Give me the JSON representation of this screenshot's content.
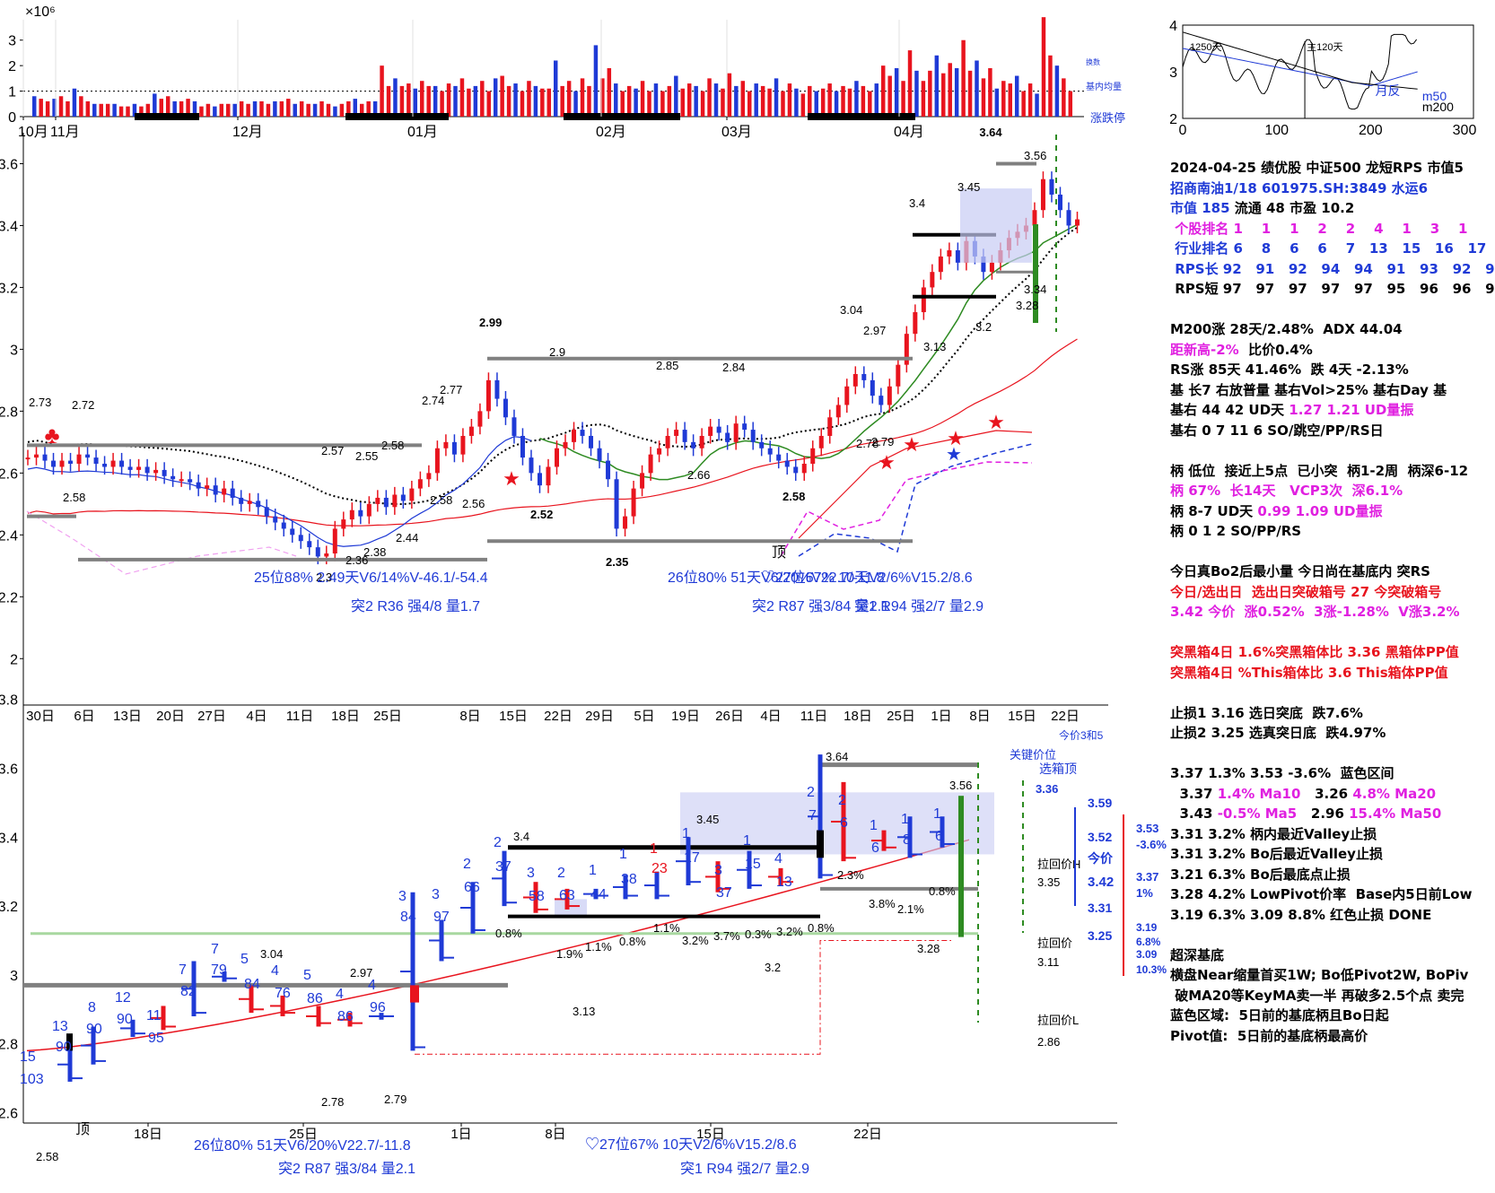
{
  "colors": {
    "up": "#e8141e",
    "down": "#1f3ad6",
    "black": "#000000",
    "grey": "#808080",
    "green": "#2e8b22",
    "lightgreen": "#90d890",
    "magenta": "#e020e0",
    "blueBox": "#c8ccf4"
  },
  "chart_data": [
    {
      "type": "bar",
      "name": "volume",
      "y_unit_label": "×10⁶",
      "yticks": [
        0,
        1,
        2,
        3
      ],
      "ylim": [
        0,
        3.8
      ],
      "xticks": [
        "10月",
        "11月",
        "12月",
        "01月",
        "02月",
        "03月",
        "04月"
      ],
      "side_labels": [
        "换数",
        "基内均量",
        "涨跌停"
      ],
      "values": [
        0.8,
        0.7,
        0.6,
        0.7,
        0.8,
        0.6,
        1.1,
        0.8,
        0.6,
        0.5,
        0.5,
        0.5,
        0.5,
        0.4,
        0.4,
        0.5,
        0.4,
        0.5,
        0.9,
        0.7,
        0.8,
        0.6,
        0.6,
        0.7,
        0.6,
        0.4,
        0.5,
        0.4,
        0.5,
        0.5,
        0.5,
        0.6,
        0.5,
        0.6,
        0.6,
        0.5,
        0.6,
        0.6,
        0.7,
        0.5,
        0.6,
        0.5,
        0.5,
        0.6,
        0.5,
        0.4,
        0.5,
        0.6,
        0.7,
        0.5,
        0.6,
        0.6,
        2.0,
        1.2,
        1.5,
        1.2,
        1.3,
        1.1,
        1.4,
        1.2,
        1.2,
        1.0,
        1.3,
        1.2,
        1.5,
        1.1,
        1.2,
        1.4,
        1.0,
        1.5,
        1.6,
        1.2,
        1.3,
        1.0,
        1.4,
        1.2,
        1.1,
        1.1,
        2.2,
        1.2,
        1.4,
        1.0,
        1.5,
        1.2,
        2.8,
        1.5,
        1.9,
        1.3,
        1.0,
        1.2,
        1.1,
        1.4,
        1.0,
        1.3,
        1.0,
        1.2,
        1.6,
        1.1,
        1.3,
        1.2,
        1.0,
        1.5,
        1.3,
        1.1,
        1.7,
        1.2,
        1.4,
        1.0,
        1.3,
        1.2,
        1.1,
        1.5,
        1.0,
        1.3,
        1.1,
        0.9,
        1.2,
        1.0,
        1.1,
        1.3,
        1.0,
        1.2,
        1.1,
        1.4,
        1.2,
        1.0,
        1.3,
        2.0,
        1.6,
        1.9,
        1.4,
        2.6,
        1.8,
        1.4,
        1.8,
        2.4,
        1.7,
        2.1,
        1.9,
        3.0,
        1.8,
        2.2,
        1.5,
        1.9,
        1.1,
        1.4,
        1.3,
        1.6,
        1.0,
        1.3,
        0.9,
        3.9,
        2.4,
        2.0,
        1.5,
        1.0
      ]
    },
    {
      "type": "line",
      "name": "rps_mini",
      "xticks": [
        0,
        100,
        200,
        300
      ],
      "yticks": [
        2,
        3,
        4
      ],
      "labels": [
        "1250天",
        "主120天",
        "月反",
        "m50",
        "m200"
      ]
    },
    {
      "type": "candlestick",
      "name": "main_daily",
      "ylim": [
        1.85,
        3.7
      ],
      "yticks": [
        2,
        2.2,
        2.4,
        2.6,
        2.8,
        3,
        3.2,
        3.4,
        3.6
      ],
      "xticks": [
        "30日",
        "6日",
        "13日",
        "20日",
        "27日",
        "4日",
        "11日",
        "18日",
        "25日",
        "8日",
        "15日",
        "22日",
        "29日",
        "5日",
        "19日",
        "26日",
        "4日",
        "11日",
        "18日",
        "25日",
        "1日",
        "8日",
        "15日",
        "22日"
      ],
      "top_label": "3.64",
      "value_labels": [
        "2.73",
        "2.72",
        "2.58",
        "2.57",
        "2.55",
        "2.58",
        "2.74",
        "2.77",
        "2.99",
        "2.9",
        "2.85",
        "2.84",
        "3.04",
        "2.97",
        "3.13",
        "3.4",
        "3.45",
        "3.56",
        "3.34",
        "3.28",
        "3.2",
        "2.79",
        "2.78",
        "2.66",
        "2.58",
        "2.52",
        "2.35",
        "2.44",
        "2.38",
        "2.36",
        "2.3",
        "2.58",
        "2.56"
      ],
      "closes": [
        2.65,
        2.66,
        2.64,
        2.62,
        2.64,
        2.63,
        2.66,
        2.65,
        2.63,
        2.62,
        2.64,
        2.62,
        2.61,
        2.62,
        2.6,
        2.61,
        2.59,
        2.58,
        2.58,
        2.57,
        2.55,
        2.56,
        2.53,
        2.55,
        2.52,
        2.5,
        2.51,
        2.49,
        2.46,
        2.44,
        2.42,
        2.4,
        2.38,
        2.36,
        2.33,
        2.34,
        2.42,
        2.45,
        2.48,
        2.46,
        2.5,
        2.52,
        2.49,
        2.53,
        2.51,
        2.55,
        2.58,
        2.6,
        2.68,
        2.7,
        2.66,
        2.72,
        2.75,
        2.8,
        2.9,
        2.84,
        2.78,
        2.72,
        2.65,
        2.6,
        2.56,
        2.62,
        2.68,
        2.7,
        2.74,
        2.72,
        2.68,
        2.64,
        2.58,
        2.42,
        2.46,
        2.55,
        2.6,
        2.66,
        2.68,
        2.72,
        2.74,
        2.7,
        2.68,
        2.72,
        2.75,
        2.73,
        2.7,
        2.76,
        2.74,
        2.7,
        2.68,
        2.66,
        2.64,
        2.62,
        2.6,
        2.63,
        2.68,
        2.72,
        2.78,
        2.82,
        2.88,
        2.92,
        2.9,
        2.85,
        2.82,
        2.88,
        2.95,
        3.05,
        3.12,
        3.2,
        3.25,
        3.3,
        3.32,
        3.28,
        3.35,
        3.3,
        3.25,
        3.28,
        3.32,
        3.36,
        3.38,
        3.4,
        3.45,
        3.55,
        3.5,
        3.45,
        3.4,
        3.42
      ],
      "annotations": [
        "25位88% 2.49天V6/14%V-46.1/-54.4",
        "突2 R36 强4/8 量1.7",
        "26位80% 51天V6/20%V22.7/-11.8",
        "♡27位67% 10天V2/6%V15.2/8.6",
        "突2 R87 强3/84 量2.1",
        "突1 R94 强2/7 量2.9",
        "顶"
      ]
    },
    {
      "type": "candlestick",
      "name": "zoom_daily",
      "ylim": [
        2.57,
        3.82
      ],
      "yticks": [
        2.6,
        2.8,
        3,
        3.2,
        3.4,
        3.6,
        3.8
      ],
      "xticks": [
        "18日",
        "25日",
        "1日",
        "8日",
        "15日",
        "22日"
      ],
      "value_labels": [
        "3.64",
        "3.56",
        "3.45",
        "3.4",
        "3.04",
        "2.97",
        "3.13",
        "3.28",
        "3.2",
        "2.78",
        "2.79",
        "2.58"
      ],
      "rank_labels": [
        "15",
        "103",
        "13",
        "90",
        "8",
        "90",
        "12",
        "90",
        "11",
        "95",
        "7",
        "82",
        "7",
        "79",
        "5",
        "84",
        "4",
        "76",
        "5",
        "86",
        "4",
        "86",
        "4",
        "96",
        "3",
        "84",
        "3",
        "97",
        "2",
        "66",
        "2",
        "37",
        "3",
        "58",
        "2",
        "63",
        "1",
        "44",
        "1",
        "38",
        "1",
        "23",
        "1",
        "17",
        "3",
        "37",
        "1",
        "15",
        "4",
        "13",
        "2",
        "7",
        "2",
        "6",
        "1",
        "6",
        "1",
        "8",
        "1",
        "6"
      ],
      "pct_labels": [
        "0.8%",
        "1.9%",
        "1.1%",
        "0.8%",
        "1.1%",
        "3.2%",
        "3.7%",
        "0.3%",
        "3.2%",
        "0.8%",
        "2.3%",
        "3.8%",
        "2.1%",
        "0.8%"
      ],
      "annotations": [
        "26位80% 51天V6/20%V22.7/-11.8",
        "♡27位67% 10天V2/6%V15.2/8.6",
        "突2 R87 强3/84 量2.1",
        "突1 R94 强2/7 量2.9",
        "顶"
      ],
      "right_panel": [
        "今价3和5",
        "关键价位",
        "选箱顶",
        "3.36",
        "3.59",
        "3.52",
        "拉回价H",
        "3.35",
        "今价",
        "3.42",
        "3.31",
        "3.25",
        "拉回价",
        "3.11",
        "拉回价L",
        "2.86",
        "3.53",
        "-3.6%",
        "3.37",
        "1%",
        "3.19",
        "6.8%",
        "3.09",
        "10.3%"
      ]
    }
  ],
  "side_panel": [
    [
      {
        "c": "k",
        "t": "2024-04-25 绩优股 中证500 龙短RPS 市值5"
      }
    ],
    [
      {
        "c": "b",
        "t": "招商南油1/18 601975.SH:3849 水运6"
      }
    ],
    [
      {
        "c": "b",
        "t": "市值 185 "
      },
      {
        "c": "k",
        "t": "流通 48 市盈 10.2"
      }
    ],
    [
      {
        "c": "m",
        "t": " 个股排名 1    1    1    2    2    4    1    3    1"
      }
    ],
    [
      {
        "c": "b",
        "t": " 行业排名 6    8    6    6    7   13   15   16   17"
      }
    ],
    [
      {
        "c": "b",
        "t": " RPS长 92   91   92   94   94   91   93   92   9"
      }
    ],
    [
      {
        "c": "k",
        "t": " RPS短 97   97   97   97   97   95   96   96   9"
      }
    ],
    [
      {
        "c": "k",
        "t": ""
      }
    ],
    [
      {
        "c": "k",
        "t": "M200涨 28天/2.48%  ADX 44.04"
      }
    ],
    [
      {
        "c": "m",
        "t": "距新高-2%  "
      },
      {
        "c": "k",
        "t": "比价0.4%"
      }
    ],
    [
      {
        "c": "k",
        "t": "RS涨 85天 41.46%  跌 4天 -2.13%"
      }
    ],
    [
      {
        "c": "k",
        "t": "基 长7 右放普量 基右Vol>25% 基右Day 基"
      }
    ],
    [
      {
        "c": "k",
        "t": "基右 44 42 UD天 "
      },
      {
        "c": "m",
        "t": "1.27 1.21 UD量振"
      }
    ],
    [
      {
        "c": "k",
        "t": "基右 0 7 11 6 SO/跳空/PP/RS日"
      }
    ],
    [
      {
        "c": "k",
        "t": ""
      }
    ],
    [
      {
        "c": "k",
        "t": "柄 低位  接近上5点  已小突  柄1-2周  柄深6-12"
      }
    ],
    [
      {
        "c": "m",
        "t": "柄 67%  长14天   VCP3次  深6.1%"
      }
    ],
    [
      {
        "c": "k",
        "t": "柄 8-7 UD天 "
      },
      {
        "c": "m",
        "t": "0.99 1.09 UD量振"
      }
    ],
    [
      {
        "c": "k",
        "t": "柄 0 1 2 SO/PP/RS"
      }
    ],
    [
      {
        "c": "k",
        "t": ""
      }
    ],
    [
      {
        "c": "k",
        "t": "今日真Bo2后最小量 今日尚在基底内 突RS"
      }
    ],
    [
      {
        "c": "r",
        "t": "今日/选出日  选出日突破箱号 27 今突破箱号"
      }
    ],
    [
      {
        "c": "m",
        "t": "3.42 今价  涨0.52%  3涨-1.28%  V涨3.2%"
      }
    ],
    [
      {
        "c": "k",
        "t": ""
      }
    ],
    [
      {
        "c": "r",
        "t": "突黑箱4日 1.6%突黑箱体比 3.36 黑箱体PP值"
      }
    ],
    [
      {
        "c": "r",
        "t": "突黑箱4日 %This箱体比 3.6 This箱体PP值"
      }
    ],
    [
      {
        "c": "k",
        "t": ""
      }
    ],
    [
      {
        "c": "k",
        "t": "止损1 3.16 选日突底  跌7.6%"
      }
    ],
    [
      {
        "c": "k",
        "t": "止损2 3.25 选真突日底  跌4.97%"
      }
    ],
    [
      {
        "c": "k",
        "t": ""
      }
    ],
    [
      {
        "c": "k",
        "t": "3.37 1.3% 3.53 -3.6%  蓝色区间"
      }
    ],
    [
      {
        "c": "k",
        "t": "  3.37 "
      },
      {
        "c": "m",
        "t": "1.4% Ma10   "
      },
      {
        "c": "k",
        "t": "3.26 "
      },
      {
        "c": "m",
        "t": "4.8% Ma20"
      }
    ],
    [
      {
        "c": "k",
        "t": "  3.43 "
      },
      {
        "c": "m",
        "t": "-0.5% Ma5   "
      },
      {
        "c": "k",
        "t": "2.96 "
      },
      {
        "c": "m",
        "t": "15.4% Ma50"
      }
    ],
    [
      {
        "c": "k",
        "t": "3.31 3.2% 柄内最近Valley止损"
      }
    ],
    [
      {
        "c": "k",
        "t": "3.31 3.2% Bo后最近Valley止损"
      }
    ],
    [
      {
        "c": "k",
        "t": "3.21 6.3% Bo后最底点止损"
      }
    ],
    [
      {
        "c": "k",
        "t": "3.28 4.2% LowPivot价率  Base内5日前Low"
      }
    ],
    [
      {
        "c": "k",
        "t": "3.19 6.3% 3.09 8.8% 红色止损 DONE"
      }
    ],
    [
      {
        "c": "k",
        "t": ""
      }
    ],
    [
      {
        "c": "k",
        "t": "超深基底"
      }
    ],
    [
      {
        "c": "k",
        "t": "横盘Near缩量首买1W; Bo低Pivot2W, BoPiv"
      }
    ],
    [
      {
        "c": "k",
        "t": " 破MA20等KeyMA卖一半 再破多2.5个点 卖完"
      }
    ],
    [
      {
        "c": "k",
        "t": "蓝色区域:  5日前的基底柄且Bo日起"
      }
    ],
    [
      {
        "c": "k",
        "t": "Pivot值:  5日前的基底柄最高价"
      }
    ]
  ]
}
